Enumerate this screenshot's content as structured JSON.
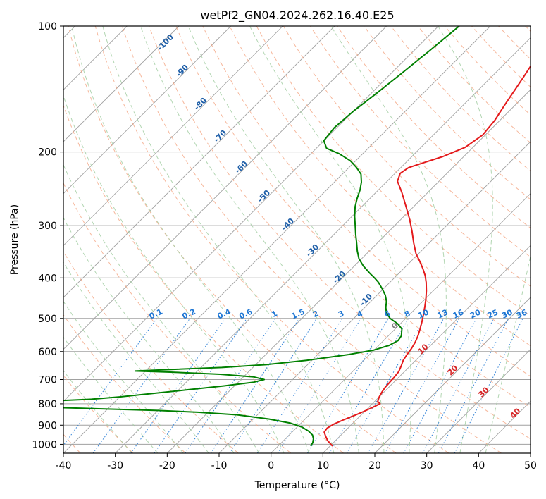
{
  "chart_data": {
    "type": "line",
    "title": "wetPf2_GN04.2024.262.16.40.E25",
    "xlabel": "Temperature (°C)",
    "ylabel": "Pressure (hPa)",
    "xlim": [
      -40,
      50
    ],
    "ylim": [
      1050,
      100
    ],
    "y_scale": "log",
    "grid": true,
    "x_ticks": [
      -40,
      -30,
      -20,
      -10,
      0,
      10,
      20,
      30,
      40,
      50
    ],
    "y_ticks": [
      100,
      200,
      300,
      400,
      500,
      600,
      700,
      800,
      900,
      1000
    ],
    "skew_deg": 45,
    "series": [
      {
        "name": "",
        "color": "#e41a1c",
        "points": [
          [
            1010,
            10.5
          ],
          [
            980,
            8.5
          ],
          [
            955,
            7.2
          ],
          [
            935,
            6.2
          ],
          [
            915,
            6.0
          ],
          [
            895,
            6.5
          ],
          [
            875,
            7.5
          ],
          [
            855,
            8.7
          ],
          [
            835,
            9.8
          ],
          [
            815,
            10.8
          ],
          [
            800,
            11.5
          ],
          [
            790,
            10.6
          ],
          [
            770,
            10.0
          ],
          [
            750,
            9.6
          ],
          [
            730,
            9.3
          ],
          [
            710,
            9.2
          ],
          [
            690,
            9.1
          ],
          [
            670,
            8.9
          ],
          [
            650,
            8.3
          ],
          [
            630,
            7.6
          ],
          [
            610,
            7.2
          ],
          [
            590,
            6.9
          ],
          [
            570,
            6.4
          ],
          [
            550,
            5.7
          ],
          [
            530,
            4.8
          ],
          [
            510,
            3.8
          ],
          [
            490,
            2.7
          ],
          [
            470,
            1.5
          ],
          [
            450,
            0.2
          ],
          [
            430,
            -1.3
          ],
          [
            410,
            -3.0
          ],
          [
            395,
            -4.5
          ],
          [
            380,
            -6.3
          ],
          [
            365,
            -8.3
          ],
          [
            350,
            -10.5
          ],
          [
            330,
            -13.0
          ],
          [
            310,
            -15.5
          ],
          [
            290,
            -18.3
          ],
          [
            270,
            -21.5
          ],
          [
            250,
            -25.0
          ],
          [
            235,
            -28.0
          ],
          [
            225,
            -29.0
          ],
          [
            218,
            -28.5
          ],
          [
            212,
            -26.5
          ],
          [
            205,
            -24.0
          ],
          [
            195,
            -21.5
          ],
          [
            182,
            -20.5
          ],
          [
            168,
            -21.0
          ],
          [
            155,
            -22.0
          ],
          [
            142,
            -23.0
          ],
          [
            130,
            -24.0
          ],
          [
            120,
            -25.0
          ],
          [
            110,
            -27.0
          ],
          [
            100,
            -29.0
          ]
        ]
      },
      {
        "name": "",
        "color": "#008000",
        "points": [
          [
            1010,
            6.3
          ],
          [
            990,
            6.0
          ],
          [
            970,
            5.4
          ],
          [
            950,
            4.5
          ],
          [
            930,
            3.0
          ],
          [
            910,
            1.0
          ],
          [
            890,
            -2.0
          ],
          [
            870,
            -7.0
          ],
          [
            850,
            -14.0
          ],
          [
            838,
            -22.0
          ],
          [
            830,
            -30.0
          ],
          [
            820,
            -45.0
          ],
          [
            810,
            -60.0
          ],
          [
            800,
            -80.0
          ],
          [
            795,
            -70.0
          ],
          [
            790,
            -55.0
          ],
          [
            780,
            -45.0
          ],
          [
            770,
            -40.0
          ],
          [
            755,
            -34.0
          ],
          [
            740,
            -28.0
          ],
          [
            725,
            -22.0
          ],
          [
            710,
            -17.0
          ],
          [
            700,
            -15.5
          ],
          [
            690,
            -18.0
          ],
          [
            680,
            -25.0
          ],
          [
            672,
            -35.0
          ],
          [
            668,
            -42.0
          ],
          [
            662,
            -35.0
          ],
          [
            655,
            -26.0
          ],
          [
            645,
            -18.0
          ],
          [
            630,
            -11.0
          ],
          [
            610,
            -4.0
          ],
          [
            595,
            0.0
          ],
          [
            580,
            2.0
          ],
          [
            565,
            2.8
          ],
          [
            550,
            2.5
          ],
          [
            530,
            1.3
          ],
          [
            515,
            -0.5
          ],
          [
            500,
            -3.0
          ],
          [
            485,
            -4.8
          ],
          [
            470,
            -6.0
          ],
          [
            455,
            -7.0
          ],
          [
            440,
            -8.4
          ],
          [
            425,
            -10.2
          ],
          [
            410,
            -12.2
          ],
          [
            400,
            -13.8
          ],
          [
            390,
            -15.6
          ],
          [
            375,
            -18.2
          ],
          [
            360,
            -20.5
          ],
          [
            345,
            -22.3
          ],
          [
            330,
            -24.0
          ],
          [
            315,
            -25.8
          ],
          [
            300,
            -27.6
          ],
          [
            285,
            -29.5
          ],
          [
            270,
            -31.3
          ],
          [
            258,
            -32.5
          ],
          [
            246,
            -33.6
          ],
          [
            236,
            -34.8
          ],
          [
            226,
            -36.4
          ],
          [
            218,
            -38.5
          ],
          [
            210,
            -41.0
          ],
          [
            202,
            -44.5
          ],
          [
            196,
            -48.0
          ],
          [
            188,
            -50.0
          ],
          [
            175,
            -50.5
          ],
          [
            160,
            -50.0
          ],
          [
            145,
            -49.0
          ],
          [
            130,
            -48.0
          ],
          [
            115,
            -47.0
          ],
          [
            100,
            -46.0
          ]
        ]
      }
    ],
    "annotations": {
      "moist_adiabat_labels": [
        "-100",
        "-90",
        "-80",
        "-70",
        "-60",
        "-50",
        "-40",
        "-30",
        "-20",
        "-10"
      ],
      "mixing_ratio_labels": [
        "0.1",
        "0.2",
        "0.4",
        "0.6",
        "1",
        "1.5",
        "2",
        "3",
        "4",
        "6",
        "8",
        "10",
        "13",
        "16",
        "20",
        "25",
        "30",
        "36"
      ],
      "dry_adiabat_labels": [
        "0",
        "10",
        "20",
        "30",
        "40"
      ]
    },
    "colors": {
      "isotherm": "#a0a0a0",
      "dry_adiabat": "#f4a582",
      "moist_adiabat": "#9fcc9f",
      "mixing_ratio": "#1f77d4",
      "dry_label": "#d62728",
      "moist_label": "#1f5fa8",
      "zero_label": "#808080"
    }
  }
}
